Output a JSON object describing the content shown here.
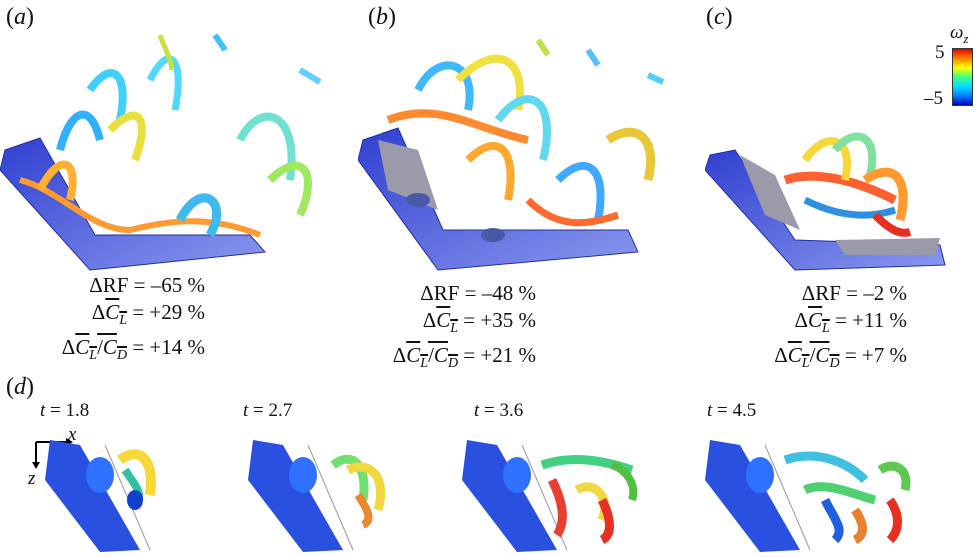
{
  "panels": [
    {
      "label_letter": "a",
      "stats": {
        "rf_sym": "ΔRF",
        "rf_val": " = –65 %",
        "cl_delta": "Δ",
        "cl_sym": "C",
        "cl_sub": "L",
        "cl_val": " = +29 %",
        "ld_delta": "Δ",
        "ld_val": " = +14 %"
      }
    },
    {
      "label_letter": "b",
      "stats": {
        "rf_sym": "ΔRF",
        "rf_val": " = –48 %",
        "cl_delta": "Δ",
        "cl_sym": "C",
        "cl_sub": "L",
        "cl_val": " = +35 %",
        "ld_delta": "Δ",
        "ld_val": " = +21 %"
      }
    },
    {
      "label_letter": "c",
      "stats": {
        "rf_sym": "ΔRF",
        "rf_val": " = –2 %",
        "cl_delta": "Δ",
        "cl_sym": "C",
        "cl_sub": "L",
        "cl_val": " = +11 %",
        "ld_delta": "Δ",
        "ld_val": " = +7 %"
      }
    }
  ],
  "ratio_num": "C",
  "ratio_num_sub": "L",
  "ratio_den": "C",
  "ratio_den_sub": "D",
  "panel_d_letter": "d",
  "time_prefix": "t",
  "time_values": [
    "= 1.8",
    "= 2.7",
    "= 3.6",
    "= 4.5"
  ],
  "axes": {
    "x": "x",
    "z": "z"
  },
  "colorbar": {
    "symbol": "ω",
    "subscript": "z",
    "max_label": "5",
    "min_label": "–5",
    "colors": [
      "#0000c8",
      "#0080ff",
      "#00e0ff",
      "#40ff80",
      "#ffff00",
      "#ff8000",
      "#e00000"
    ]
  }
}
